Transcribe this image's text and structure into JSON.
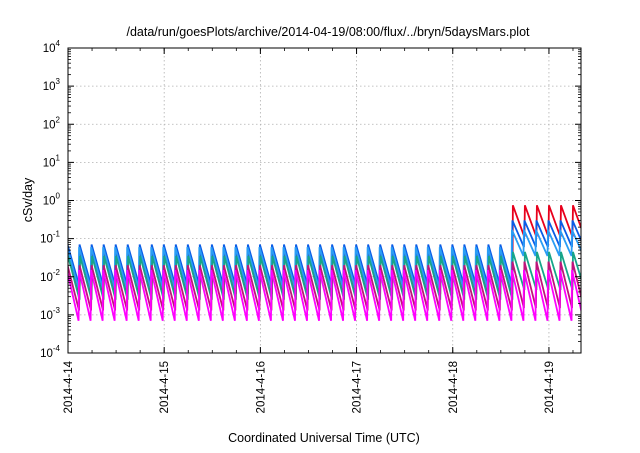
{
  "chart_data": {
    "type": "line",
    "title": "/data/run/goesPlots/archive/2014-04-19/08:00/flux/../bryn/5daysMars.plot",
    "xlabel": "Coordinated Universal Time (UTC)",
    "ylabel": "cSv/day",
    "y_scale": "log",
    "ylim": [
      0.0001,
      10000
    ],
    "y_tick_labels": [
      {
        "base": "10",
        "exp": "-4"
      },
      {
        "base": "10",
        "exp": "-3"
      },
      {
        "base": "10",
        "exp": "-2"
      },
      {
        "base": "10",
        "exp": "-1"
      },
      {
        "base": "10",
        "exp": "0"
      },
      {
        "base": "10",
        "exp": "1"
      },
      {
        "base": "10",
        "exp": "2"
      },
      {
        "base": "10",
        "exp": "3"
      },
      {
        "base": "10",
        "exp": "4"
      }
    ],
    "x_tick_labels": [
      "2014-4-14",
      "2014-4-15",
      "2014-4-16",
      "2014-4-17",
      "2014-4-18",
      "2014-4-19"
    ],
    "xlim": [
      "2014-04-14T00:00",
      "2014-04-19T08:00"
    ],
    "grid": true,
    "legend": "none",
    "sawtooth_period_hours": 3,
    "event_onset": "2014-04-18T14:00",
    "series": [
      {
        "color": "#e8001c",
        "peak_before": 0.045,
        "trough_before": 0.0035,
        "peak_after": 0.75,
        "trough_after": 0.11
      },
      {
        "color": "#0a5ce6",
        "peak_before": 0.07,
        "trough_before": 0.006,
        "peak_after": 0.3,
        "trough_after": 0.06
      },
      {
        "color": "#2a9df4",
        "peak_before": 0.06,
        "trough_before": 0.005,
        "peak_after": 0.17,
        "trough_after": 0.035
      },
      {
        "color": "#17a589",
        "peak_before": 0.035,
        "trough_before": 0.0025,
        "peak_after": 0.045,
        "trough_after": 0.0045
      },
      {
        "color": "#c0137a",
        "peak_before": 0.02,
        "trough_before": 0.0013,
        "peak_after": 0.025,
        "trough_after": 0.0015
      },
      {
        "color": "#ff00ff",
        "peak_before": 0.015,
        "trough_before": 0.0007,
        "peak_after": 0.015,
        "trough_after": 0.0007
      }
    ]
  }
}
